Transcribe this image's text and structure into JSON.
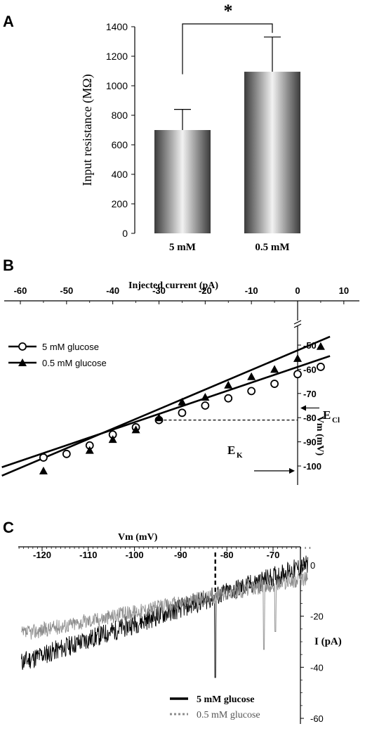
{
  "chart_data": [
    {
      "panel": "A",
      "type": "bar",
      "ylabel": "Input resistance (MΩ)",
      "ylim": [
        0,
        1400
      ],
      "yticks": [
        0,
        200,
        400,
        600,
        800,
        1000,
        1200,
        1400
      ],
      "categories": [
        "5 mM",
        "0.5 mM"
      ],
      "values": [
        700,
        1095
      ],
      "errors": [
        140,
        235
      ],
      "significance": "*",
      "colors": {
        "bar_edge": "#3a3a3a",
        "bar_center": "#f2f2f2"
      }
    },
    {
      "panel": "B",
      "type": "scatter",
      "xlabel": "Injected current (pA)",
      "ylabel": "Vm (mV)",
      "xlim": [
        -65,
        15
      ],
      "ylim": [
        -108,
        -42
      ],
      "xticks": [
        -60,
        -50,
        -40,
        -30,
        -20,
        -10,
        0,
        10
      ],
      "yticks": [
        -50,
        -60,
        -70,
        -80,
        -90,
        -100
      ],
      "series": [
        {
          "name": "5 mM glucose",
          "marker": "open-circle",
          "x": [
            -55,
            -50,
            -45,
            -40,
            -35,
            -30,
            -25,
            -20,
            -15,
            -10,
            -5,
            0,
            5
          ],
          "y": [
            -96.5,
            -95,
            -91.5,
            -87,
            -84,
            -81,
            -78,
            -75,
            -72,
            -69,
            -66,
            -62,
            -59
          ],
          "fit": {
            "x1": -64,
            "y1": -100.5,
            "x2": 7,
            "y2": -54.5
          }
        },
        {
          "name": "0.5 mM glucose",
          "marker": "filled-triangle",
          "x": [
            -55,
            -45,
            -40,
            -35,
            -30,
            -25,
            -20,
            -15,
            -10,
            -5,
            0,
            5
          ],
          "y": [
            -102,
            -93.5,
            -89,
            -85,
            -80,
            -73.5,
            -71.5,
            -66.5,
            -63,
            -60,
            -55.5,
            -50.5
          ],
          "fit": {
            "x1": -64,
            "y1": -104,
            "x2": 7,
            "y2": -46.5
          }
        }
      ],
      "annotations": [
        {
          "label_main": "E",
          "label_sub": "Cl",
          "value": -76
        },
        {
          "label_main": "E",
          "label_sub": "K",
          "value": -102
        }
      ],
      "reference_line": {
        "y": -81,
        "x_from": -30,
        "x_to": 0
      }
    },
    {
      "panel": "C",
      "type": "line",
      "xlabel": "Vm (mV)",
      "ylabel": "I (pA)",
      "xlim": [
        -125,
        -62
      ],
      "ylim": [
        -62,
        3
      ],
      "xticks": [
        -120,
        -110,
        -100,
        -90,
        -80,
        -70
      ],
      "yticks": [
        0,
        -20,
        -40,
        -60
      ],
      "vline_x": -82.5,
      "series": [
        {
          "name": "5 mM glucose",
          "color": "#000000",
          "x": [
            -124.5,
            -62.5
          ],
          "y": [
            -38,
            0
          ],
          "noise": 4,
          "spikes": [
            {
              "x": -82.5,
              "y": -44
            }
          ]
        },
        {
          "name": "0.5 mM glucose",
          "color": "#8c8c8c",
          "x": [
            -124.5,
            -62.5
          ],
          "y": [
            -27,
            -5
          ],
          "noise": 3,
          "spikes": [
            {
              "x": -72,
              "y": -33
            },
            {
              "x": -69.5,
              "y": -26
            }
          ]
        }
      ],
      "legend_position": "bottom-right"
    }
  ]
}
